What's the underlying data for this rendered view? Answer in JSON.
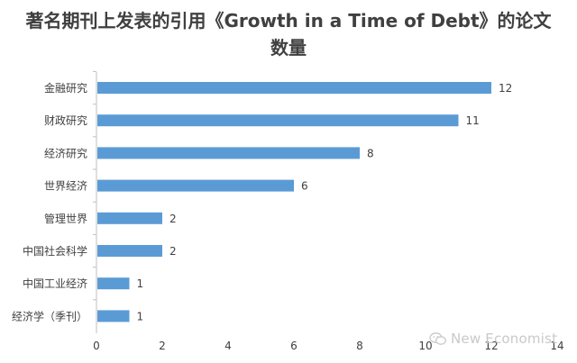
{
  "chart_data": {
    "type": "bar",
    "orientation": "horizontal",
    "title": "著名期刊上发表的引用《Growth in a Time of Debt》的论文数量",
    "title_lines": [
      "著名期刊上发表的引用《Growth in a Time of Debt》的论文",
      "数量"
    ],
    "categories": [
      "金融研究",
      "财政研究",
      "经济研究",
      "世界经济",
      "管理世界",
      "中国社会科学",
      "中国工业经济",
      "经济学（季刊）"
    ],
    "values": [
      12,
      11,
      8,
      6,
      2,
      2,
      1,
      1
    ],
    "xlim": [
      0,
      14
    ],
    "xticks": [
      0,
      2,
      4,
      6,
      8,
      10,
      12,
      14
    ],
    "xlabel": "",
    "ylabel": "",
    "data_labels": true,
    "grid": false,
    "legend": "none",
    "bar_color": "#5b9bd5"
  },
  "watermark": {
    "text": "New Economist",
    "icon": "wechat-icon"
  }
}
